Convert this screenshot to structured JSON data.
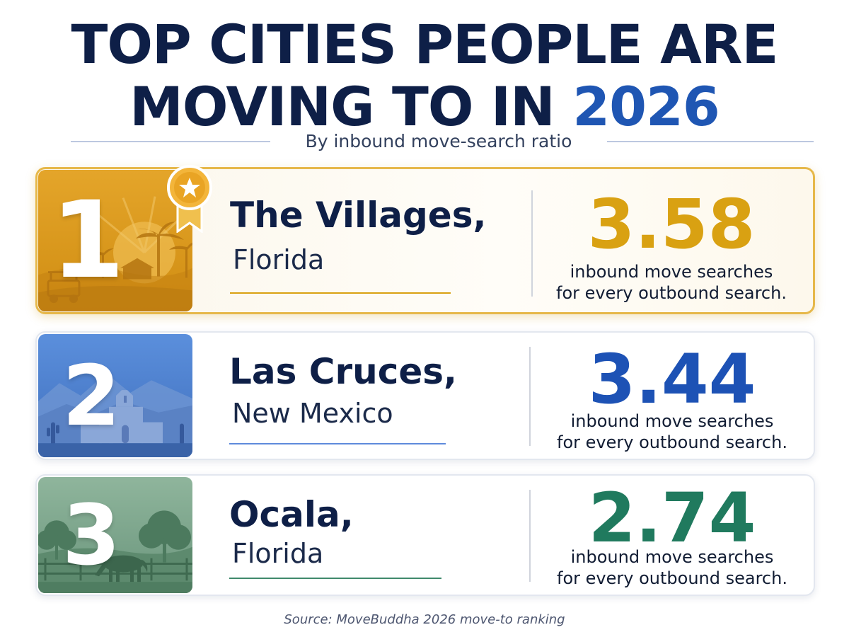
{
  "header": {
    "title_line1": "TOP CITIES PEOPLE ARE",
    "title_line2_prefix": "MOVING TO IN ",
    "title_line2_year": "2026",
    "subtitle": "By inbound move-search ratio"
  },
  "rankings": [
    {
      "rank": "1",
      "city": "The Villages,",
      "state": "Florida",
      "ratio": "3.58",
      "desc_line1": "inbound move searches",
      "desc_line2": "for every outbound search.",
      "accent_color": "#d9a112"
    },
    {
      "rank": "2",
      "city": "Las Cruces,",
      "state": "New Mexico",
      "ratio": "3.44",
      "desc_line1": "inbound move searches",
      "desc_line2": "for every outbound search.",
      "accent_color": "#1d52b5"
    },
    {
      "rank": "3",
      "city": "Ocala,",
      "state": "Florida",
      "ratio": "2.74",
      "desc_line1": "inbound move searches",
      "desc_line2": "for every outbound search.",
      "accent_color": "#207a5e"
    }
  ],
  "icons": {
    "top_badge": "star-ribbon-icon"
  },
  "footer": {
    "source": "Source: MoveBuddha 2026 move-to ranking"
  }
}
